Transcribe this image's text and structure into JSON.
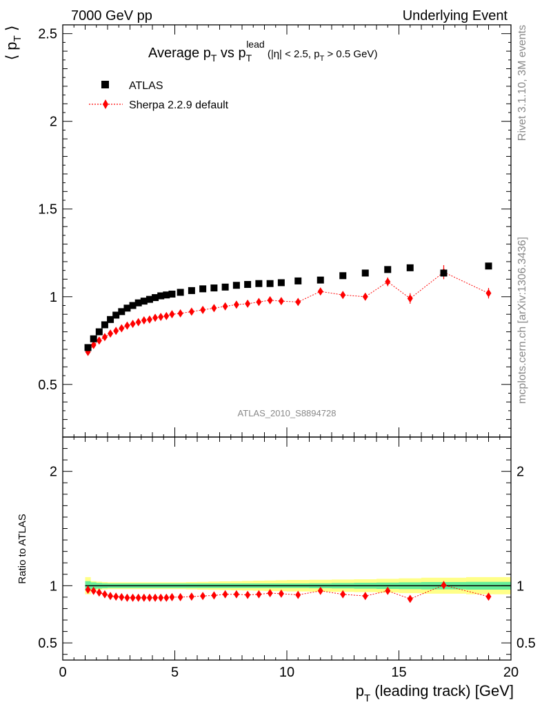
{
  "header": {
    "left": "7000 GeV pp",
    "right": "Underlying Event"
  },
  "side_labels": {
    "rivet": "Rivet 3.1.10,  3M events",
    "mcplots": "mcplots.cern.ch [arXiv:1306.3436]"
  },
  "watermark": "ATLAS_2010_S8894728",
  "colors": {
    "data": "#000000",
    "mc": "#ff0000",
    "band_inner": "#66ee99",
    "band_outer": "#ffff88"
  },
  "chart_data": [
    {
      "type": "scatter",
      "title": "Average p_T vs p_T^lead (|η| < 2.5, p_T > 0.5 GeV)",
      "title_parts": {
        "main": "Average p",
        "sub1": "T",
        "mid": " vs p",
        "sub2": "T",
        "sup": "lead",
        "cond": " (|η| < 2.5, p",
        "sub3": "T",
        "cond_end": " > 0.5 GeV)"
      },
      "ylabel": "⟨ p_T ⟩",
      "ylabel_parts": {
        "open": "⟨ p",
        "sub": "T",
        "close": " ⟩"
      },
      "xlim": [
        0,
        20
      ],
      "ylim": [
        0.2,
        2.55
      ],
      "yticks": [
        0.5,
        1,
        1.5,
        2,
        2.5
      ],
      "ytick_labels": [
        "0.5",
        "1",
        "1.5",
        "2",
        "2.5"
      ],
      "legend_position": "top-left",
      "series": [
        {
          "name": "ATLAS",
          "marker": "square",
          "x": [
            1.125,
            1.375,
            1.625,
            1.875,
            2.125,
            2.375,
            2.625,
            2.875,
            3.125,
            3.375,
            3.625,
            3.875,
            4.125,
            4.375,
            4.625,
            4.875,
            5.25,
            5.75,
            6.25,
            6.75,
            7.25,
            7.75,
            8.25,
            8.75,
            9.25,
            9.75,
            10.5,
            11.5,
            12.5,
            13.5,
            14.5,
            15.5,
            17,
            19
          ],
          "y": [
            0.71,
            0.76,
            0.8,
            0.84,
            0.87,
            0.895,
            0.915,
            0.935,
            0.95,
            0.965,
            0.975,
            0.985,
            0.995,
            1.005,
            1.01,
            1.015,
            1.025,
            1.035,
            1.045,
            1.05,
            1.055,
            1.065,
            1.07,
            1.075,
            1.075,
            1.08,
            1.09,
            1.095,
            1.12,
            1.135,
            1.155,
            1.165,
            1.135,
            1.175
          ]
        },
        {
          "name": "Sherpa 2.2.9 default",
          "marker": "diamond",
          "x": [
            1.125,
            1.375,
            1.625,
            1.875,
            2.125,
            2.375,
            2.625,
            2.875,
            3.125,
            3.375,
            3.625,
            3.875,
            4.125,
            4.375,
            4.625,
            4.875,
            5.25,
            5.75,
            6.25,
            6.75,
            7.25,
            7.75,
            8.25,
            8.75,
            9.25,
            9.75,
            10.5,
            11.5,
            12.5,
            13.5,
            14.5,
            15.5,
            17,
            19
          ],
          "y": [
            0.685,
            0.725,
            0.75,
            0.77,
            0.79,
            0.805,
            0.82,
            0.835,
            0.845,
            0.855,
            0.865,
            0.87,
            0.88,
            0.885,
            0.89,
            0.9,
            0.905,
            0.915,
            0.925,
            0.935,
            0.945,
            0.955,
            0.96,
            0.97,
            0.98,
            0.975,
            0.97,
            1.03,
            1.01,
            1.0,
            1.085,
            0.99,
            1.14,
            1.02
          ],
          "yerr": [
            0.005,
            0.005,
            0.005,
            0.005,
            0.005,
            0.005,
            0.005,
            0.005,
            0.005,
            0.005,
            0.005,
            0.005,
            0.005,
            0.005,
            0.005,
            0.005,
            0.005,
            0.005,
            0.005,
            0.006,
            0.006,
            0.007,
            0.008,
            0.009,
            0.01,
            0.011,
            0.012,
            0.014,
            0.016,
            0.02,
            0.025,
            0.03,
            0.04,
            0.03
          ]
        }
      ]
    },
    {
      "type": "scatter",
      "ylabel": "Ratio to ATLAS",
      "xlabel": "p_T (leading track) [GeV]",
      "xlabel_parts": {
        "main": "p",
        "sub": "T",
        "rest": " (leading track) [GeV]"
      },
      "xlim": [
        0,
        20
      ],
      "ylim": [
        0.35,
        2.3
      ],
      "xticks": [
        0,
        5,
        10,
        15,
        20
      ],
      "xtick_labels": [
        "0",
        "5",
        "10",
        "15",
        "20"
      ],
      "yticks": [
        0.5,
        1,
        2
      ],
      "ytick_labels": [
        "0.5",
        "1",
        "2"
      ],
      "series": [
        {
          "name": "Sherpa 2.2.9 default",
          "marker": "diamond",
          "x": [
            1.125,
            1.375,
            1.625,
            1.875,
            2.125,
            2.375,
            2.625,
            2.875,
            3.125,
            3.375,
            3.625,
            3.875,
            4.125,
            4.375,
            4.625,
            4.875,
            5.25,
            5.75,
            6.25,
            6.75,
            7.25,
            7.75,
            8.25,
            8.75,
            9.25,
            9.75,
            10.5,
            11.5,
            12.5,
            13.5,
            14.5,
            15.5,
            17,
            19
          ],
          "y": [
            0.965,
            0.955,
            0.94,
            0.925,
            0.91,
            0.905,
            0.9,
            0.895,
            0.895,
            0.895,
            0.895,
            0.895,
            0.895,
            0.895,
            0.895,
            0.9,
            0.9,
            0.905,
            0.91,
            0.915,
            0.925,
            0.925,
            0.92,
            0.925,
            0.935,
            0.93,
            0.92,
            0.955,
            0.925,
            0.91,
            0.955,
            0.885,
            1.005,
            0.905
          ],
          "yerr": [
            0.005,
            0.005,
            0.005,
            0.005,
            0.005,
            0.005,
            0.005,
            0.005,
            0.005,
            0.005,
            0.005,
            0.005,
            0.005,
            0.005,
            0.005,
            0.005,
            0.005,
            0.005,
            0.006,
            0.006,
            0.007,
            0.008,
            0.008,
            0.009,
            0.01,
            0.011,
            0.012,
            0.014,
            0.016,
            0.02,
            0.025,
            0.028,
            0.035,
            0.03
          ]
        }
      ],
      "band": {
        "x_edges": [
          1,
          1.25,
          1.5,
          1.75,
          2,
          2.25,
          2.5,
          2.75,
          3,
          3.25,
          3.5,
          3.75,
          4,
          4.25,
          4.5,
          4.75,
          5,
          5.5,
          6,
          6.5,
          7,
          7.5,
          8,
          8.5,
          9,
          9.5,
          10,
          11,
          12,
          13,
          14,
          15,
          16,
          18,
          20
        ],
        "inner_half": [
          0.04,
          0.03,
          0.025,
          0.022,
          0.02,
          0.02,
          0.02,
          0.02,
          0.02,
          0.02,
          0.02,
          0.02,
          0.02,
          0.02,
          0.02,
          0.02,
          0.02,
          0.02,
          0.02,
          0.02,
          0.02,
          0.02,
          0.02,
          0.02,
          0.02,
          0.02,
          0.02,
          0.022,
          0.024,
          0.026,
          0.028,
          0.03,
          0.032,
          0.034
        ],
        "outer_half": [
          0.075,
          0.04,
          0.035,
          0.032,
          0.03,
          0.03,
          0.03,
          0.03,
          0.03,
          0.03,
          0.03,
          0.03,
          0.03,
          0.03,
          0.03,
          0.03,
          0.03,
          0.032,
          0.034,
          0.036,
          0.038,
          0.04,
          0.042,
          0.044,
          0.046,
          0.048,
          0.05,
          0.052,
          0.054,
          0.056,
          0.06,
          0.065,
          0.07,
          0.075
        ]
      }
    }
  ]
}
